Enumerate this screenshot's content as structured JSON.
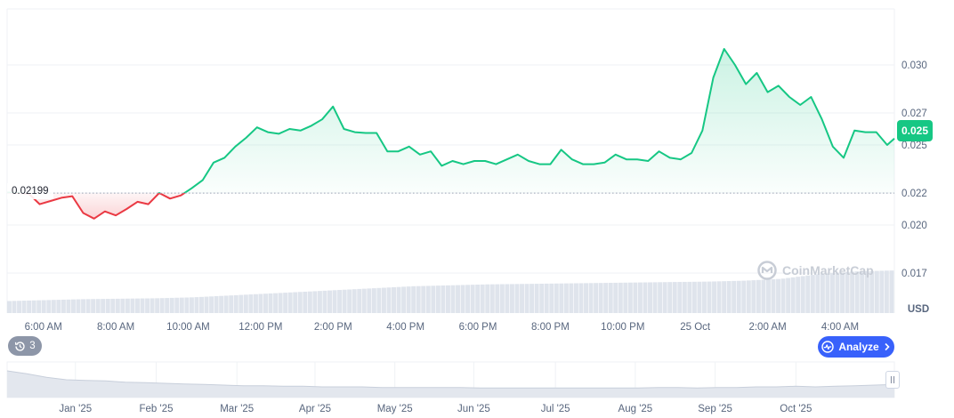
{
  "chart_data": {
    "type": "area",
    "currency_label": "USD",
    "current_price_label": "0.025",
    "baseline_label": "0.02199",
    "baseline_value": 0.02199,
    "y_axis": {
      "ylim": [
        0.0145,
        0.0335
      ],
      "tick_values": [
        0.017,
        0.02,
        0.022,
        0.025,
        0.027,
        0.03
      ],
      "tick_labels": [
        "0.017",
        "0.020",
        "0.022",
        "0.025",
        "0.027",
        "0.030"
      ]
    },
    "x_axis": {
      "tick_labels": [
        "6:00 AM",
        "8:00 AM",
        "10:00 AM",
        "12:00 PM",
        "2:00 PM",
        "4:00 PM",
        "6:00 PM",
        "8:00 PM",
        "10:00 PM",
        "25 Oct",
        "2:00 AM",
        "4:00 AM"
      ],
      "tick_positions": [
        1,
        3,
        5,
        7,
        9,
        11,
        13,
        15,
        17,
        19,
        21,
        23
      ],
      "xlim": [
        0,
        24.5
      ]
    },
    "series": [
      {
        "values": [
          [
            0.0,
            0.02203
          ],
          [
            0.3,
            0.022
          ],
          [
            0.6,
            0.02195
          ],
          [
            0.9,
            0.0213
          ],
          [
            1.2,
            0.0215
          ],
          [
            1.5,
            0.0217
          ],
          [
            1.8,
            0.0218
          ],
          [
            2.1,
            0.02075
          ],
          [
            2.4,
            0.0204
          ],
          [
            2.7,
            0.02085
          ],
          [
            3.0,
            0.0206
          ],
          [
            3.3,
            0.021
          ],
          [
            3.6,
            0.02145
          ],
          [
            3.9,
            0.0213
          ],
          [
            4.2,
            0.022
          ],
          [
            4.5,
            0.02165
          ],
          [
            4.8,
            0.02185
          ],
          [
            5.1,
            0.0223
          ],
          [
            5.4,
            0.0228
          ],
          [
            5.7,
            0.0239
          ],
          [
            6.0,
            0.0242
          ],
          [
            6.3,
            0.0249
          ],
          [
            6.6,
            0.02545
          ],
          [
            6.9,
            0.0261
          ],
          [
            7.2,
            0.0258
          ],
          [
            7.5,
            0.0257
          ],
          [
            7.8,
            0.026
          ],
          [
            8.1,
            0.0259
          ],
          [
            8.4,
            0.0262
          ],
          [
            8.7,
            0.0266
          ],
          [
            9.0,
            0.0274
          ],
          [
            9.3,
            0.026
          ],
          [
            9.6,
            0.0258
          ],
          [
            9.9,
            0.02575
          ],
          [
            10.2,
            0.02575
          ],
          [
            10.5,
            0.0246
          ],
          [
            10.8,
            0.0246
          ],
          [
            11.1,
            0.0249
          ],
          [
            11.4,
            0.0244
          ],
          [
            11.7,
            0.0246
          ],
          [
            12.0,
            0.0237
          ],
          [
            12.3,
            0.024
          ],
          [
            12.6,
            0.0238
          ],
          [
            12.9,
            0.024
          ],
          [
            13.2,
            0.024
          ],
          [
            13.5,
            0.0238
          ],
          [
            13.8,
            0.0241
          ],
          [
            14.1,
            0.0244
          ],
          [
            14.4,
            0.024
          ],
          [
            14.7,
            0.0238
          ],
          [
            15.0,
            0.0238
          ],
          [
            15.3,
            0.0247
          ],
          [
            15.6,
            0.0241
          ],
          [
            15.9,
            0.0238
          ],
          [
            16.2,
            0.0238
          ],
          [
            16.5,
            0.0239
          ],
          [
            16.8,
            0.0244
          ],
          [
            17.1,
            0.0241
          ],
          [
            17.4,
            0.0241
          ],
          [
            17.7,
            0.024
          ],
          [
            18.0,
            0.0246
          ],
          [
            18.3,
            0.0242
          ],
          [
            18.6,
            0.0241
          ],
          [
            18.9,
            0.0245
          ],
          [
            19.2,
            0.0259
          ],
          [
            19.5,
            0.0292
          ],
          [
            19.8,
            0.031
          ],
          [
            20.1,
            0.03
          ],
          [
            20.4,
            0.0288
          ],
          [
            20.7,
            0.0295
          ],
          [
            21.0,
            0.0283
          ],
          [
            21.3,
            0.0287
          ],
          [
            21.6,
            0.028
          ],
          [
            21.9,
            0.0275
          ],
          [
            22.2,
            0.028
          ],
          [
            22.5,
            0.0266
          ],
          [
            22.8,
            0.0249
          ],
          [
            23.1,
            0.0242
          ],
          [
            23.4,
            0.0259
          ],
          [
            23.7,
            0.0258
          ],
          [
            24.0,
            0.0258
          ],
          [
            24.3,
            0.025
          ],
          [
            24.5,
            0.0254
          ]
        ]
      }
    ],
    "volume_relative": [
      0.26,
      0.28,
      0.3,
      0.31,
      0.32,
      0.34,
      0.38,
      0.42,
      0.46,
      0.5,
      0.54,
      0.58,
      0.6,
      0.62,
      0.63,
      0.64,
      0.65,
      0.66,
      0.67,
      0.68,
      0.7,
      0.74,
      0.84,
      0.9,
      0.92
    ],
    "navigator": {
      "tick_labels": [
        "Jan '25",
        "Feb '25",
        "Mar '25",
        "Apr '25",
        "May '25",
        "Jun '25",
        "Jul '25",
        "Aug '25",
        "Sep '25",
        "Oct '25"
      ],
      "tick_positions": [
        0.077,
        0.168,
        0.259,
        0.347,
        0.437,
        0.526,
        0.618,
        0.708,
        0.798,
        0.889
      ],
      "values": [
        0.045,
        0.04,
        0.034,
        0.03,
        0.029,
        0.028,
        0.026,
        0.025,
        0.024,
        0.023,
        0.022,
        0.021,
        0.02,
        0.02,
        0.019,
        0.019,
        0.018,
        0.018,
        0.018,
        0.017,
        0.017,
        0.017,
        0.017,
        0.017,
        0.016,
        0.016,
        0.016,
        0.016,
        0.016,
        0.016,
        0.016,
        0.016,
        0.016,
        0.017,
        0.017,
        0.016,
        0.017,
        0.017,
        0.018,
        0.018,
        0.019,
        0.018,
        0.019,
        0.02,
        0.021,
        0.022
      ],
      "ylim": [
        0.0,
        0.06
      ]
    },
    "colors": {
      "up": "#16c784",
      "down": "#ea3943",
      "grid": "#eff2f5",
      "axis_text": "#58667e",
      "volume": "#dfe4ec",
      "navigator_fill": "#e3e7ee",
      "navigator_line": "#c8cfdb",
      "accent": "#3861fb"
    }
  },
  "controls": {
    "history_count": "3",
    "history_icon": "history-icon",
    "analyze_label": "Analyze",
    "analyze_icon": "chart-pulse-icon",
    "watermark_text": "CoinMarketCap",
    "watermark_icon": "coinmarketcap-logo-icon"
  }
}
